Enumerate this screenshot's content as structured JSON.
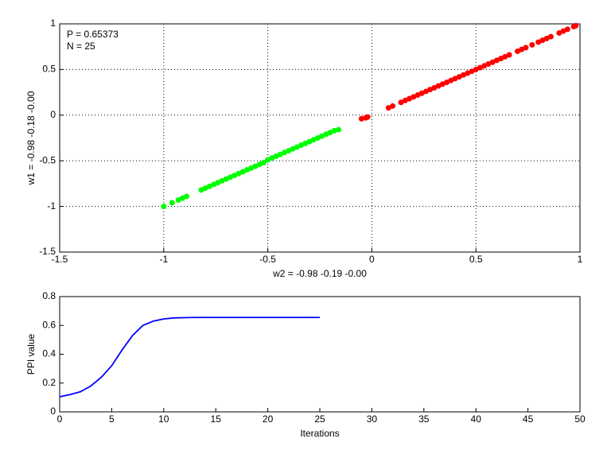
{
  "chart_data": [
    {
      "type": "scatter",
      "xlabel": "w2 = -0.98  -0.19  -0.00",
      "ylabel": "w1 = -0.98  -0.18  -0.00",
      "annotations": [
        "P = 0.65373",
        "N = 25"
      ],
      "xlim": [
        -1.5,
        1
      ],
      "ylim": [
        -1.5,
        1
      ],
      "xticks": [
        -1.5,
        -1,
        -0.5,
        0,
        0.5,
        1
      ],
      "yticks": [
        -1.5,
        -1,
        -0.5,
        0,
        0.5,
        1
      ],
      "grid": true,
      "series": [
        {
          "color": "#00ff00",
          "x": [
            -1,
            -0.96,
            -0.93,
            -0.91,
            -0.89,
            -0.82,
            -0.8,
            -0.78,
            -0.76,
            -0.74,
            -0.72,
            -0.7,
            -0.68,
            -0.66,
            -0.64,
            -0.62,
            -0.6,
            -0.58,
            -0.56,
            -0.54,
            -0.52,
            -0.5,
            -0.48,
            -0.46,
            -0.44,
            -0.42,
            -0.4,
            -0.38,
            -0.36,
            -0.34,
            -0.32,
            -0.3,
            -0.28,
            -0.26,
            -0.24,
            -0.22,
            -0.2,
            -0.18,
            -0.16
          ],
          "y": [
            -1,
            -0.96,
            -0.93,
            -0.91,
            -0.89,
            -0.82,
            -0.8,
            -0.78,
            -0.76,
            -0.74,
            -0.72,
            -0.7,
            -0.68,
            -0.66,
            -0.64,
            -0.62,
            -0.6,
            -0.58,
            -0.56,
            -0.54,
            -0.52,
            -0.49,
            -0.47,
            -0.45,
            -0.43,
            -0.41,
            -0.39,
            -0.37,
            -0.35,
            -0.33,
            -0.31,
            -0.29,
            -0.27,
            -0.25,
            -0.23,
            -0.21,
            -0.19,
            -0.17,
            -0.16
          ]
        },
        {
          "color": "#ff0000",
          "x": [
            -0.05,
            -0.03,
            -0.02,
            0.08,
            0.1,
            0.14,
            0.16,
            0.18,
            0.2,
            0.22,
            0.24,
            0.26,
            0.28,
            0.3,
            0.32,
            0.34,
            0.36,
            0.38,
            0.4,
            0.42,
            0.44,
            0.46,
            0.48,
            0.5,
            0.52,
            0.54,
            0.56,
            0.58,
            0.6,
            0.62,
            0.64,
            0.66,
            0.7,
            0.72,
            0.74,
            0.77,
            0.8,
            0.82,
            0.84,
            0.86,
            0.9,
            0.92,
            0.94,
            0.97,
            0.98
          ],
          "y": [
            -0.04,
            -0.03,
            -0.02,
            0.08,
            0.1,
            0.14,
            0.16,
            0.18,
            0.2,
            0.22,
            0.24,
            0.26,
            0.28,
            0.3,
            0.32,
            0.34,
            0.36,
            0.38,
            0.4,
            0.42,
            0.44,
            0.46,
            0.48,
            0.5,
            0.52,
            0.54,
            0.56,
            0.58,
            0.6,
            0.62,
            0.64,
            0.66,
            0.7,
            0.72,
            0.74,
            0.77,
            0.8,
            0.82,
            0.84,
            0.86,
            0.9,
            0.92,
            0.94,
            0.97,
            0.98
          ]
        }
      ]
    },
    {
      "type": "line",
      "xlabel": "Iterations",
      "ylabel": "PPI value",
      "xlim": [
        0,
        50
      ],
      "ylim": [
        0,
        0.8
      ],
      "xticks": [
        0,
        5,
        10,
        15,
        20,
        25,
        30,
        35,
        40,
        45,
        50
      ],
      "yticks": [
        0,
        0.2,
        0.4,
        0.6,
        0.8
      ],
      "grid": false,
      "x": [
        0,
        1,
        2,
        3,
        4,
        5,
        6,
        7,
        8,
        9,
        10,
        11,
        12,
        13,
        14,
        15,
        16,
        17,
        18,
        19,
        20,
        21,
        22,
        23,
        24,
        25
      ],
      "series": [
        {
          "color": "#0000ff",
          "values": [
            0.105,
            0.12,
            0.14,
            0.18,
            0.24,
            0.32,
            0.43,
            0.53,
            0.6,
            0.63,
            0.645,
            0.652,
            0.654,
            0.655,
            0.655,
            0.655,
            0.655,
            0.655,
            0.655,
            0.655,
            0.655,
            0.655,
            0.655,
            0.655,
            0.655,
            0.655
          ]
        }
      ]
    }
  ]
}
